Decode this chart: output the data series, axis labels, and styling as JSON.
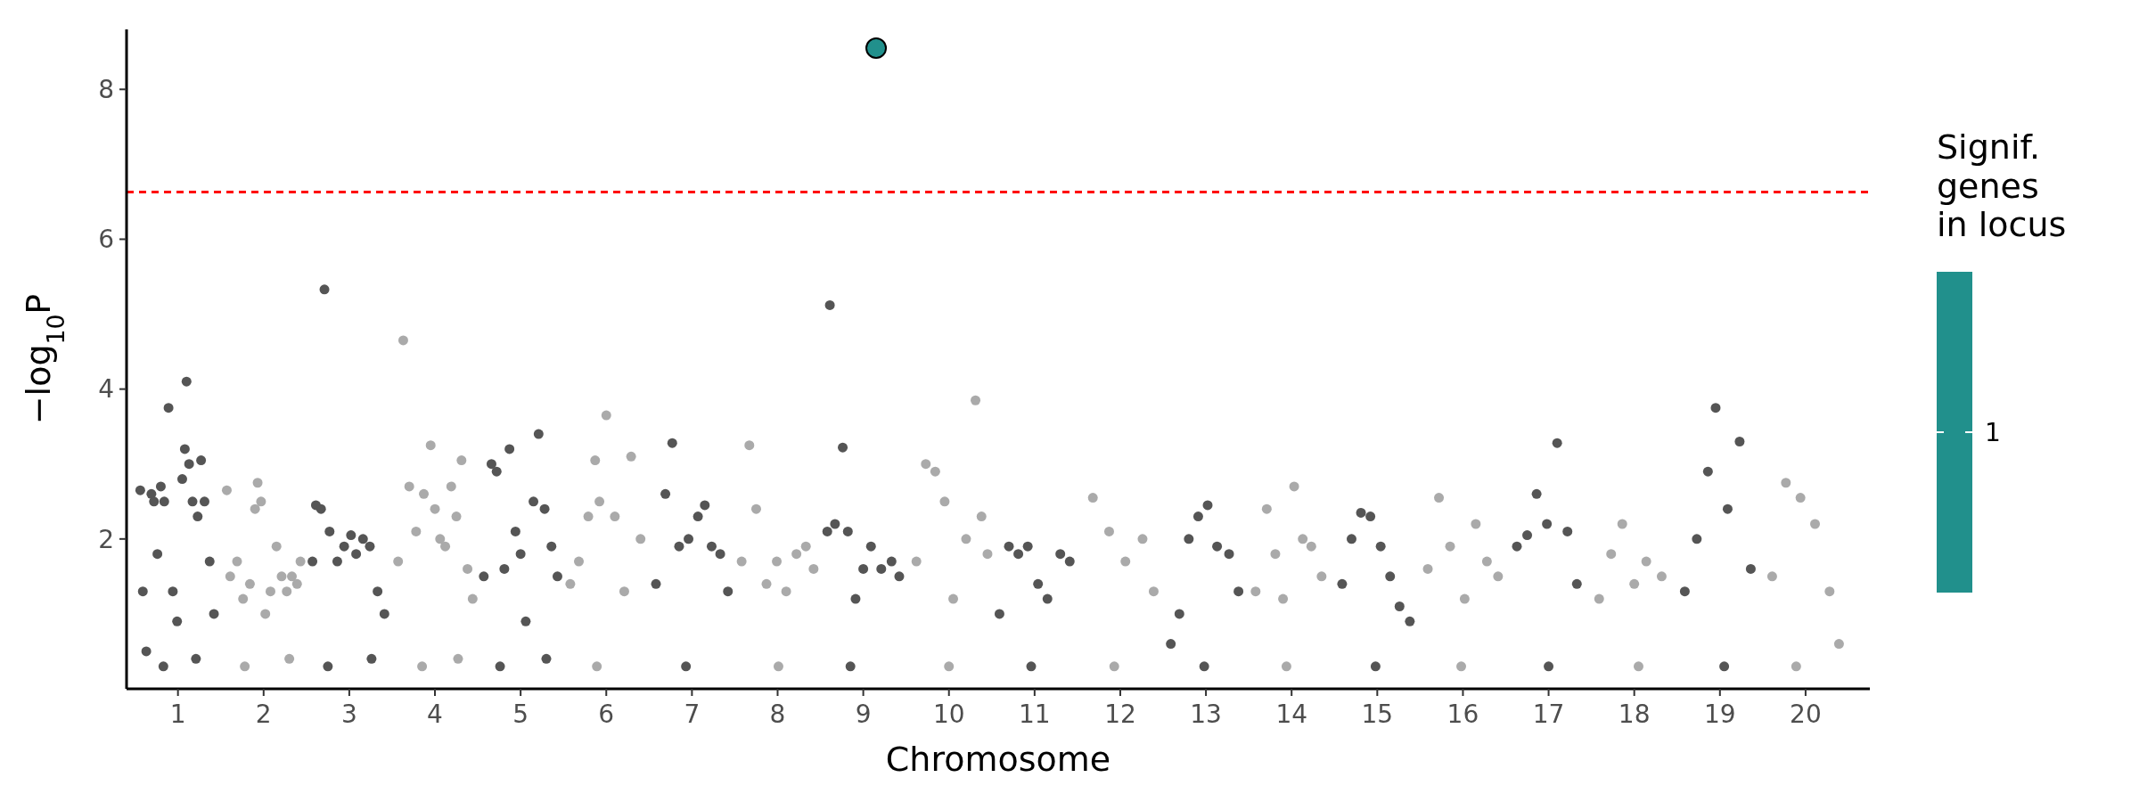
{
  "chart_data": {
    "type": "scatter",
    "xlabel": "Chromosome",
    "ylabel": "−log$_{10}$P",
    "legend_title": "Signif.\ngenes\nin locus",
    "legend": "right",
    "xlim": [
      0.4,
      20.75
    ],
    "ylim": [
      0,
      8.8
    ],
    "yticks": [
      2,
      4,
      6,
      8
    ],
    "xticks": [
      1,
      2,
      3,
      4,
      5,
      6,
      7,
      8,
      9,
      10,
      11,
      12,
      13,
      14,
      15,
      16,
      17,
      18,
      19,
      20
    ],
    "grid": false,
    "marker": "circle",
    "ref_lines": [
      {
        "axis": "y",
        "value": 6.63,
        "color": "#ff0000",
        "line_style": "dashed"
      }
    ],
    "series": [
      {
        "color": "#555555",
        "x": [
          0.56,
          0.59,
          0.63,
          0.69,
          0.72,
          0.76,
          0.8,
          0.84,
          0.89,
          0.94,
          0.99,
          1.05,
          1.08,
          1.1,
          1.13,
          1.17,
          1.23,
          1.27,
          1.31,
          1.37,
          1.42,
          0.83,
          1.21
        ],
        "values": [
          2.65,
          1.3,
          0.5,
          2.6,
          2.5,
          1.8,
          2.7,
          2.5,
          3.75,
          1.3,
          0.9,
          2.8,
          3.2,
          4.1,
          3.0,
          2.5,
          2.3,
          3.05,
          2.5,
          1.7,
          1.0,
          0.3,
          0.4
        ]
      },
      {
        "color": "#aaaaaa",
        "x": [
          1.57,
          1.61,
          1.69,
          1.76,
          1.84,
          1.9,
          1.93,
          1.97,
          2.02,
          2.08,
          2.15,
          2.21,
          2.27,
          2.33,
          2.39,
          2.43,
          1.78,
          2.3
        ],
        "values": [
          2.65,
          1.5,
          1.7,
          1.2,
          1.4,
          2.4,
          2.75,
          2.5,
          1.0,
          1.3,
          1.9,
          1.5,
          1.3,
          1.5,
          1.4,
          1.7,
          0.3,
          0.4
        ]
      },
      {
        "color": "#555555",
        "x": [
          2.57,
          2.61,
          2.67,
          2.71,
          2.77,
          2.86,
          2.94,
          3.02,
          3.08,
          3.16,
          3.24,
          3.33,
          3.41,
          2.75,
          3.26
        ],
        "values": [
          1.7,
          2.45,
          2.4,
          5.33,
          2.1,
          1.7,
          1.9,
          2.05,
          1.8,
          2.0,
          1.9,
          1.3,
          1.0,
          0.3,
          0.4
        ]
      },
      {
        "color": "#aaaaaa",
        "x": [
          3.57,
          3.63,
          3.7,
          3.78,
          3.87,
          3.95,
          4.0,
          4.06,
          4.12,
          4.19,
          4.25,
          4.31,
          4.38,
          4.44,
          3.85,
          4.27
        ],
        "values": [
          1.7,
          4.65,
          2.7,
          2.1,
          2.6,
          3.25,
          2.4,
          2.0,
          1.9,
          2.7,
          2.3,
          3.05,
          1.6,
          1.2,
          0.3,
          0.4
        ]
      },
      {
        "color": "#555555",
        "x": [
          4.57,
          4.66,
          4.72,
          4.81,
          4.87,
          4.94,
          5.0,
          5.06,
          5.15,
          5.21,
          5.28,
          5.36,
          5.43,
          4.76,
          5.3
        ],
        "values": [
          1.5,
          3.0,
          2.9,
          1.6,
          3.2,
          2.1,
          1.8,
          0.9,
          2.5,
          3.4,
          2.4,
          1.9,
          1.5,
          0.3,
          0.4
        ]
      },
      {
        "color": "#aaaaaa",
        "x": [
          5.58,
          5.68,
          5.79,
          5.87,
          5.92,
          6.0,
          6.1,
          6.21,
          6.29,
          6.4,
          5.89
        ],
        "values": [
          1.4,
          1.7,
          2.3,
          3.05,
          2.5,
          3.65,
          2.3,
          1.3,
          3.1,
          2.0,
          0.3
        ]
      },
      {
        "color": "#555555",
        "x": [
          6.58,
          6.69,
          6.77,
          6.85,
          6.96,
          7.07,
          7.15,
          7.23,
          7.33,
          7.42,
          6.93
        ],
        "values": [
          1.4,
          2.6,
          3.28,
          1.9,
          2.0,
          2.3,
          2.45,
          1.9,
          1.8,
          1.3,
          0.3
        ]
      },
      {
        "color": "#aaaaaa",
        "x": [
          7.58,
          7.67,
          7.75,
          7.87,
          7.99,
          8.1,
          8.22,
          8.33,
          8.42,
          8.01
        ],
        "values": [
          1.7,
          3.25,
          2.4,
          1.4,
          1.7,
          1.3,
          1.8,
          1.9,
          1.6,
          0.3
        ]
      },
      {
        "color": "#555555",
        "x": [
          8.58,
          8.61,
          8.67,
          8.76,
          8.82,
          8.91,
          9.0,
          9.09,
          9.21,
          9.33,
          9.42,
          8.85
        ],
        "values": [
          2.1,
          5.12,
          2.2,
          3.22,
          2.1,
          1.2,
          1.6,
          1.9,
          1.6,
          1.7,
          1.5,
          0.3
        ]
      },
      {
        "color": "#aaaaaa",
        "x": [
          9.62,
          9.73,
          9.84,
          9.95,
          10.05,
          10.2,
          10.31,
          10.38,
          10.45,
          10.0
        ],
        "values": [
          1.7,
          3.0,
          2.9,
          2.5,
          1.2,
          2.0,
          3.85,
          2.3,
          1.8,
          0.3
        ]
      },
      {
        "color": "#555555",
        "x": [
          10.59,
          10.7,
          10.81,
          10.92,
          11.04,
          11.15,
          11.3,
          11.41,
          10.96
        ],
        "values": [
          1.0,
          1.9,
          1.8,
          1.9,
          1.4,
          1.2,
          1.8,
          1.7,
          0.3
        ]
      },
      {
        "color": "#aaaaaa",
        "x": [
          11.68,
          11.87,
          12.06,
          12.26,
          12.39,
          11.93
        ],
        "values": [
          2.55,
          2.1,
          1.7,
          2.0,
          1.3,
          0.3
        ]
      },
      {
        "color": "#555555",
        "x": [
          12.59,
          12.69,
          12.8,
          12.91,
          13.02,
          13.13,
          13.27,
          13.38,
          12.98
        ],
        "values": [
          0.6,
          1.0,
          2.0,
          2.3,
          2.45,
          1.9,
          1.8,
          1.3,
          0.3
        ]
      },
      {
        "color": "#aaaaaa",
        "x": [
          13.58,
          13.71,
          13.81,
          13.9,
          14.03,
          14.13,
          14.23,
          14.35,
          13.94
        ],
        "values": [
          1.3,
          2.4,
          1.8,
          1.2,
          2.7,
          2.0,
          1.9,
          1.5,
          0.3
        ]
      },
      {
        "color": "#555555",
        "x": [
          14.59,
          14.7,
          14.81,
          14.92,
          15.04,
          15.15,
          15.26,
          15.38,
          14.98
        ],
        "values": [
          1.4,
          2.0,
          2.35,
          2.3,
          1.9,
          1.5,
          1.1,
          0.9,
          0.3
        ]
      },
      {
        "color": "#aaaaaa",
        "x": [
          15.59,
          15.72,
          15.85,
          16.02,
          16.15,
          16.28,
          16.41,
          15.98
        ],
        "values": [
          1.6,
          2.55,
          1.9,
          1.2,
          2.2,
          1.7,
          1.5,
          0.3
        ]
      },
      {
        "color": "#555555",
        "x": [
          16.63,
          16.75,
          16.86,
          16.98,
          17.1,
          17.22,
          17.33,
          17.0
        ],
        "values": [
          1.9,
          2.05,
          2.6,
          2.2,
          3.28,
          2.1,
          1.4,
          0.3
        ]
      },
      {
        "color": "#aaaaaa",
        "x": [
          17.59,
          17.73,
          17.86,
          18.0,
          18.14,
          18.32,
          18.05
        ],
        "values": [
          1.2,
          1.8,
          2.2,
          1.4,
          1.7,
          1.5,
          0.3
        ]
      },
      {
        "color": "#555555",
        "x": [
          18.59,
          18.73,
          18.86,
          18.95,
          19.09,
          19.23,
          19.36,
          19.05
        ],
        "values": [
          1.3,
          2.0,
          2.9,
          3.75,
          2.4,
          3.3,
          1.6,
          0.3
        ]
      },
      {
        "color": "#aaaaaa",
        "x": [
          19.61,
          19.77,
          19.94,
          20.11,
          20.28,
          20.39,
          19.89
        ],
        "values": [
          1.5,
          2.75,
          2.55,
          2.2,
          1.3,
          0.6,
          0.3
        ]
      },
      {
        "name": "1",
        "color": "#21908c",
        "x": [
          9.15
        ],
        "values": [
          8.55
        ]
      }
    ]
  }
}
